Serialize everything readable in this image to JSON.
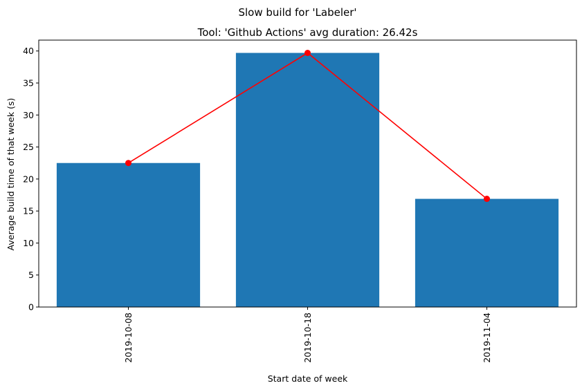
{
  "chart_data": {
    "type": "bar",
    "suptitle": "Slow build for 'Labeler'",
    "title": "Tool: 'Github Actions' avg duration: 26.42s",
    "xlabel": "Start date of week",
    "ylabel": "Average build time of that week (s)",
    "categories": [
      "2019-10-08",
      "2019-10-18",
      "2019-11-04"
    ],
    "values": [
      22.5,
      39.7,
      16.9
    ],
    "ylim": [
      0,
      41.7
    ],
    "yticks": [
      0,
      5,
      10,
      15,
      20,
      25,
      30,
      35,
      40
    ],
    "grid": false,
    "overlay_line": {
      "values": [
        22.5,
        39.7,
        16.9
      ]
    },
    "colors": {
      "bar": "#1f77b4",
      "line": "#ff0000"
    }
  }
}
